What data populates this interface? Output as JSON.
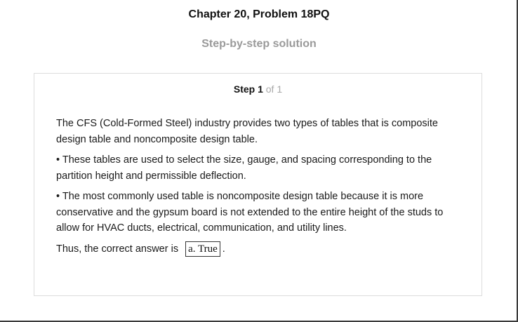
{
  "header": {
    "title": "Chapter 20, Problem 18PQ",
    "subtitle": "Step-by-step solution"
  },
  "step": {
    "label": "Step 1",
    "count": "of 1"
  },
  "solution": {
    "paragraphs": [
      "The CFS (Cold-Formed Steel) industry provides two types of tables that is composite design table and noncomposite design table.",
      "• These tables are used to select the size, gauge, and spacing corresponding to the partition height and permissible deflection.",
      "• The most commonly used table is noncomposite design table because it is more conservative and the gypsum board is not extended to the entire height of the studs to allow for HVAC ducts, electrical, communication, and utility lines."
    ],
    "answer_prefix": "Thus, the correct answer is",
    "answer_value": "a. True",
    "answer_suffix": "."
  }
}
